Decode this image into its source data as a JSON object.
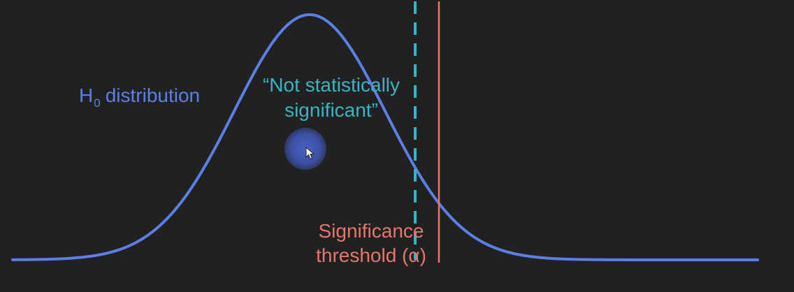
{
  "labels": {
    "h0_main": "H",
    "h0_subscript": "0",
    "h0_rest": "distribution",
    "not_significant_line1": "“Not statistically",
    "not_significant_line2": "significant”",
    "threshold_line1": "Significance",
    "threshold_line2": "threshold (α)"
  },
  "colors": {
    "background": "#212121",
    "h0_curve": "#5b7fe6",
    "not_significant": "#3ab3c3",
    "threshold": "#e5766c"
  },
  "icons": {
    "cursor": "mouse-pointer-icon"
  }
}
